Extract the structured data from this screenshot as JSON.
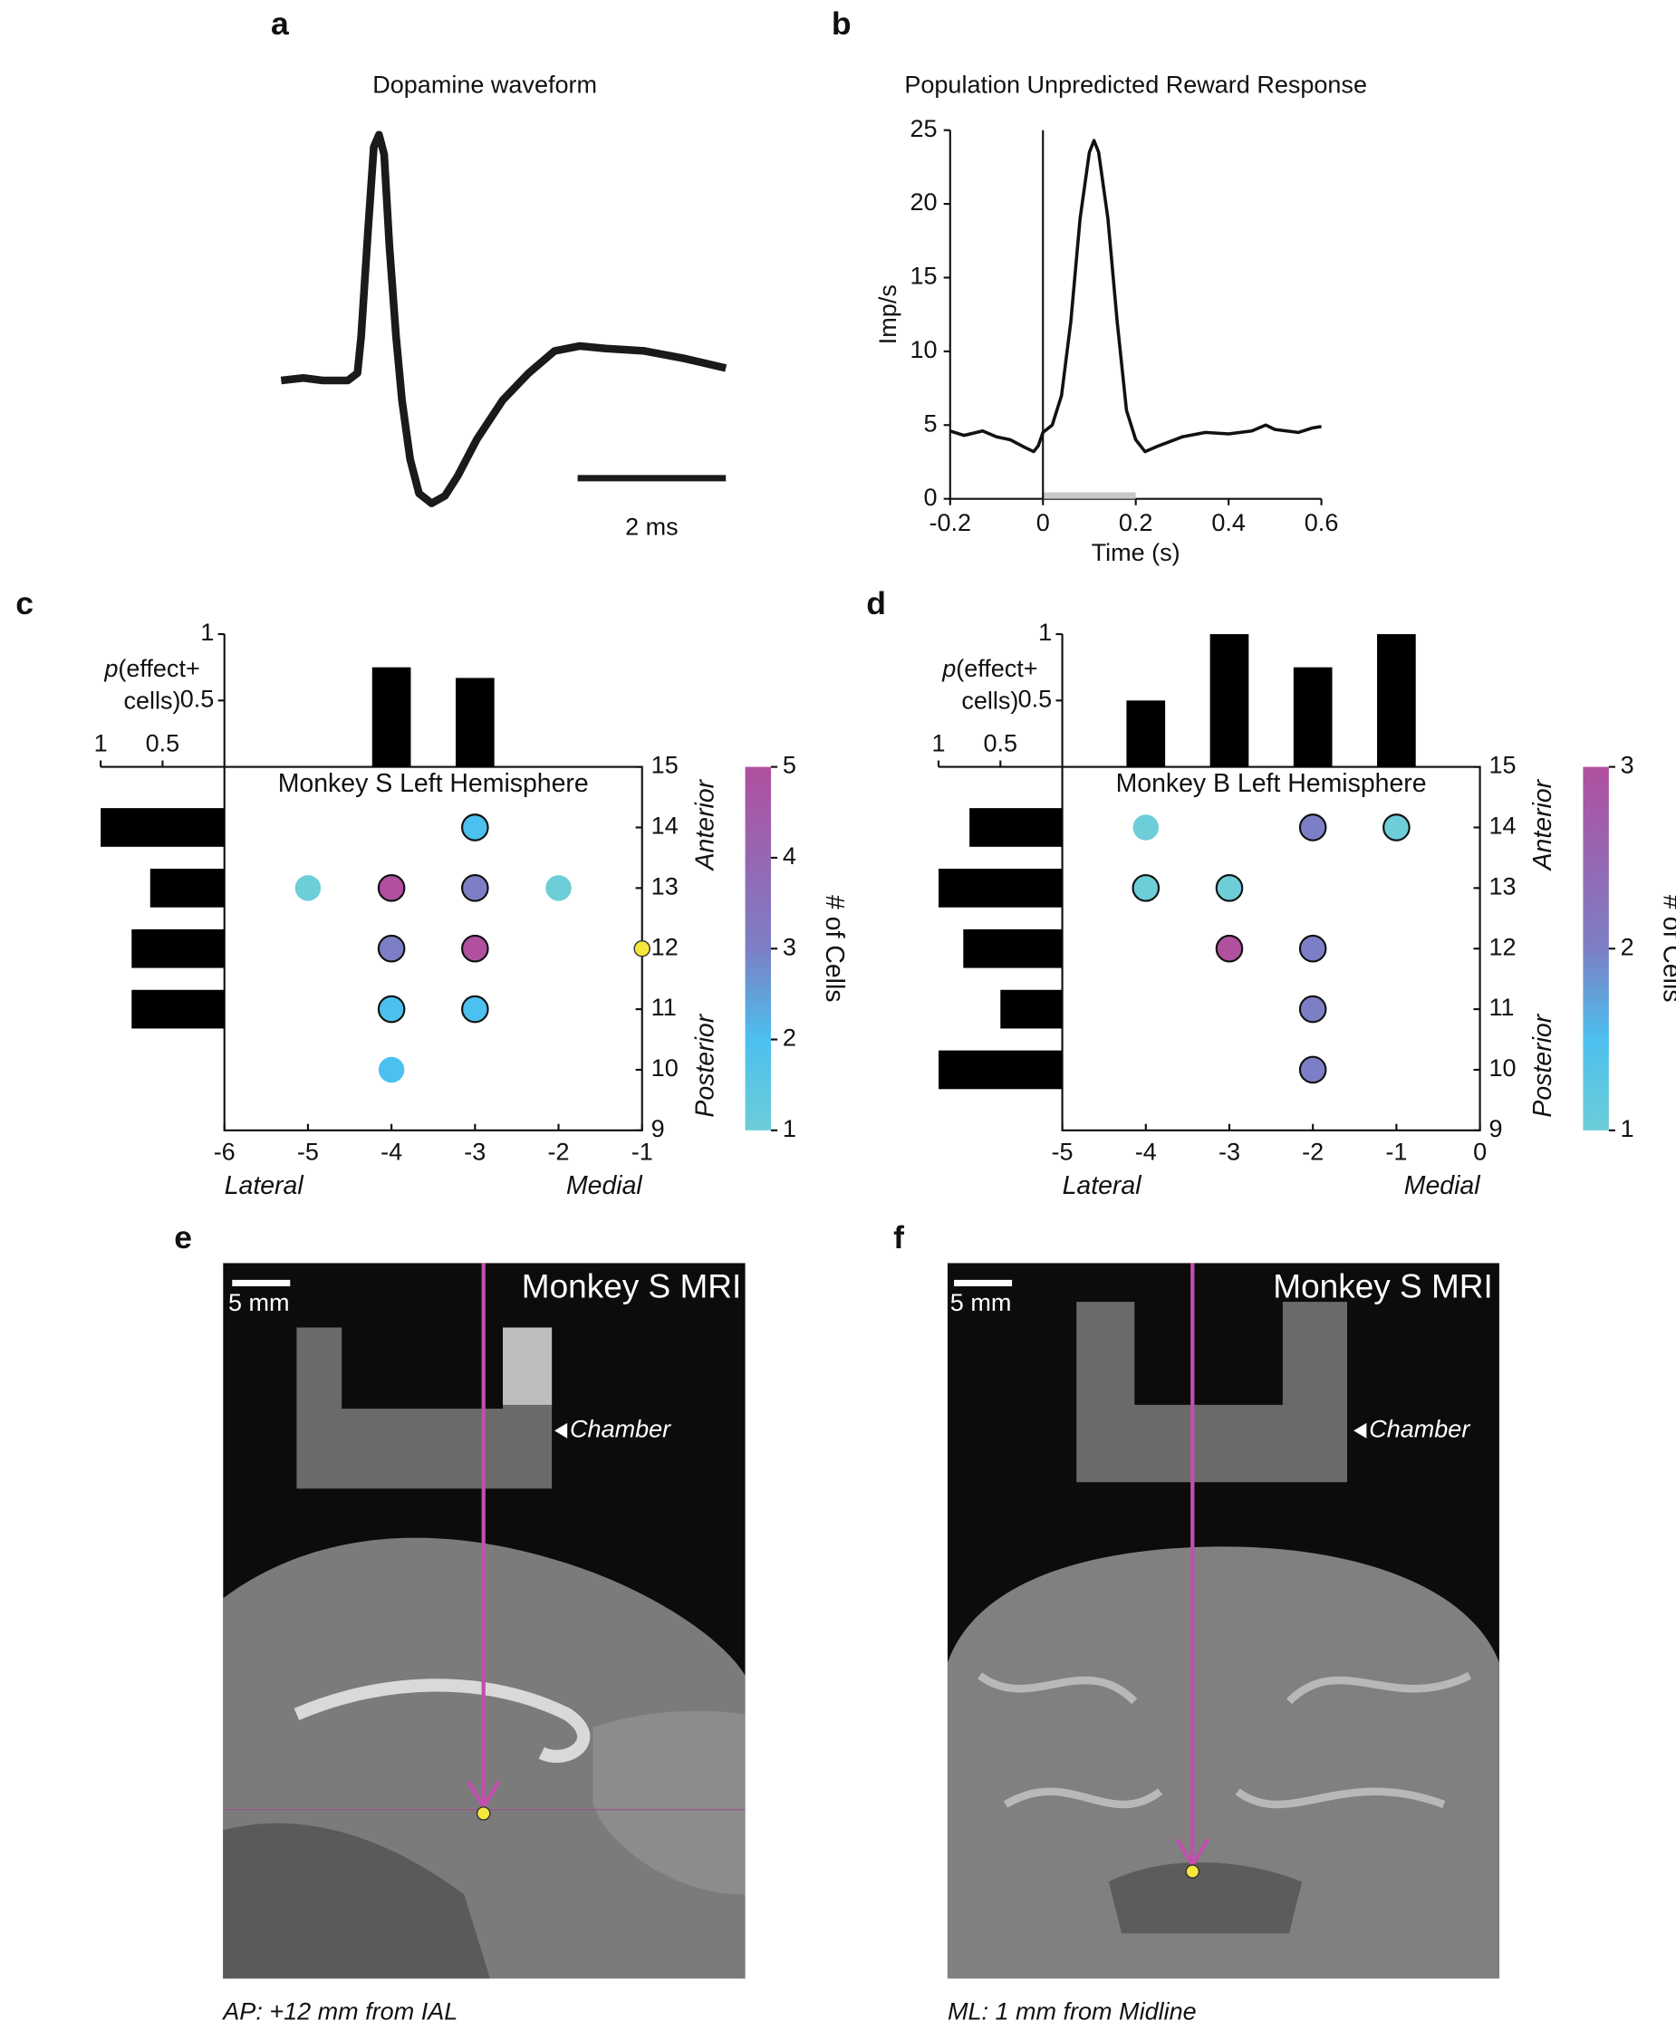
{
  "panel_labels": [
    "a",
    "b",
    "c",
    "d",
    "e",
    "f"
  ],
  "chart_data": [
    {
      "type": "waveform",
      "title": "Dopamine waveform",
      "color": "#1a1a1a",
      "x": [
        0,
        0.3,
        0.56,
        0.9,
        1.03,
        1.08,
        1.17,
        1.25,
        1.32,
        1.39,
        1.46,
        1.55,
        1.63,
        1.74,
        1.86,
        2.03,
        2.21,
        2.38,
        2.64,
        2.99,
        3.34,
        3.69,
        4.03,
        4.38,
        4.9,
        5.43,
        6.0
      ],
      "values": [
        0,
        0.01,
        0,
        0,
        0.03,
        0.18,
        0.6,
        0.95,
        1.0,
        0.92,
        0.55,
        0.18,
        -0.08,
        -0.32,
        -0.46,
        -0.5,
        -0.47,
        -0.39,
        -0.24,
        -0.08,
        0.03,
        0.12,
        0.14,
        0.13,
        0.12,
        0.09,
        0.05
      ],
      "xlim": [
        0,
        6
      ],
      "ylim": [
        -0.55,
        1.05
      ],
      "scalebar": {
        "value": 2,
        "label": "2 ms"
      }
    },
    {
      "type": "line",
      "title": "Population Unpredicted Reward Response",
      "color": "#111111",
      "x": [
        -0.2,
        -0.17,
        -0.13,
        -0.1,
        -0.07,
        -0.04,
        -0.02,
        -0.01,
        0,
        0.02,
        0.04,
        0.06,
        0.08,
        0.1,
        0.11,
        0.12,
        0.14,
        0.16,
        0.18,
        0.2,
        0.22,
        0.25,
        0.3,
        0.35,
        0.4,
        0.45,
        0.48,
        0.5,
        0.55,
        0.58,
        0.6
      ],
      "values": [
        4.6,
        4.3,
        4.6,
        4.2,
        4.0,
        3.5,
        3.2,
        3.6,
        4.5,
        5,
        7,
        12,
        19,
        23.5,
        24.3,
        23.5,
        19,
        12,
        6,
        4,
        3.2,
        3.6,
        4.2,
        4.5,
        4.4,
        4.6,
        5.0,
        4.7,
        4.5,
        4.8,
        4.9
      ],
      "xlim": [
        -0.2,
        0.6
      ],
      "ylim": [
        0,
        25
      ],
      "xticks": [
        -0.2,
        0,
        0.2,
        0.4,
        0.6
      ],
      "yticks": [
        0,
        5,
        10,
        15,
        20,
        25
      ],
      "xlabel": "Time (s)",
      "ylabel": "Imp/s",
      "event_line": 0,
      "window": [
        0,
        0.2
      ],
      "window_color": "#c8c8c8"
    },
    {
      "type": "scatter",
      "title": "Monkey S Left Hemisphere",
      "x": [
        -3,
        -5,
        -4,
        -3,
        -2,
        -4,
        -3,
        -4,
        -3,
        -4
      ],
      "y": [
        14,
        13,
        13,
        13,
        13,
        12,
        12,
        11,
        11,
        10
      ],
      "values": [
        2,
        1,
        5,
        3,
        1,
        3,
        5,
        2,
        2,
        2
      ],
      "edge": [
        true,
        false,
        true,
        true,
        false,
        true,
        true,
        true,
        true,
        false
      ],
      "xlim": [
        -6,
        -1
      ],
      "ylim": [
        9,
        15
      ],
      "xticks": [
        -6,
        -5,
        -4,
        -3,
        -2,
        -1
      ],
      "yticks": [
        9,
        10,
        11,
        12,
        13,
        14,
        15
      ],
      "xlabel_left": "Lateral",
      "xlabel_right": "Medial",
      "ylabel_top": "Anterior",
      "ylabel_bottom": "Posterior",
      "highlight": {
        "x": -1,
        "y": 12,
        "color": "#f5e83a"
      },
      "hist_label_var": "p",
      "hist_label": [
        "(effect+",
        "cells)"
      ],
      "top_hist": {
        "x": [
          -4,
          -3
        ],
        "values": [
          0.75,
          0.67
        ],
        "ylim": [
          0,
          1
        ],
        "yticks": [
          0.5,
          1
        ]
      },
      "side_hist": {
        "y": [
          14,
          13,
          12,
          11,
          10
        ],
        "values": [
          1.0,
          0.6,
          0.75,
          0.75,
          0
        ],
        "xlim": [
          0,
          1
        ],
        "xticks": [
          1,
          0.5
        ]
      },
      "colorbar": {
        "label": "# of Cells",
        "lim": [
          1,
          5
        ],
        "ticks": [
          1,
          2,
          3,
          4,
          5
        ],
        "colors": [
          "#6dcdd8",
          "#4cc0ee",
          "#7c7fc5",
          "#9667b2",
          "#b0509f"
        ]
      }
    },
    {
      "type": "scatter",
      "title": "Monkey B Left Hemisphere",
      "x": [
        -4,
        -2,
        -1,
        -4,
        -3,
        -3,
        -2,
        -2,
        -2
      ],
      "y": [
        14,
        14,
        14,
        13,
        13,
        12,
        12,
        11,
        10
      ],
      "values": [
        1,
        2,
        1,
        1,
        1,
        3,
        2,
        2,
        2
      ],
      "edge": [
        false,
        true,
        true,
        true,
        true,
        true,
        true,
        true,
        true
      ],
      "xlim": [
        -5,
        0
      ],
      "ylim": [
        9,
        15
      ],
      "xticks": [
        -5,
        -4,
        -3,
        -2,
        -1,
        0
      ],
      "yticks": [
        9,
        10,
        11,
        12,
        13,
        14,
        15
      ],
      "xlabel_left": "Lateral",
      "xlabel_right": "Medial",
      "ylabel_top": "Anterior",
      "ylabel_bottom": "Posterior",
      "hist_label_var": "p",
      "hist_label": [
        "(effect+",
        "cells)"
      ],
      "top_hist": {
        "x": [
          -4,
          -3,
          -2,
          -1
        ],
        "values": [
          0.5,
          1,
          0.75,
          1
        ],
        "ylim": [
          0,
          1
        ],
        "yticks": [
          0.5,
          1
        ]
      },
      "side_hist": {
        "y": [
          14,
          13,
          12,
          11,
          10
        ],
        "values": [
          0.75,
          1.0,
          0.8,
          0.5,
          1.0
        ],
        "xlim": [
          0,
          1
        ],
        "xticks": [
          1,
          0.5
        ]
      },
      "colorbar": {
        "label": "# of Cells",
        "lim": [
          1,
          3
        ],
        "ticks": [
          1,
          2,
          3
        ],
        "colors": [
          "#6dcdd8",
          "#4cc0ee",
          "#7c7fc5",
          "#9667b2",
          "#b0509f"
        ]
      }
    }
  ],
  "images": [
    {
      "scale_bar": "5 mm",
      "title": "Monkey S MRI",
      "annotation": "Chamber",
      "caption": "AP: +12 mm from IAL"
    },
    {
      "scale_bar": "5 mm",
      "title": "Monkey S MRI",
      "annotation": "Chamber",
      "caption": "ML: 1 mm from Midline"
    }
  ]
}
